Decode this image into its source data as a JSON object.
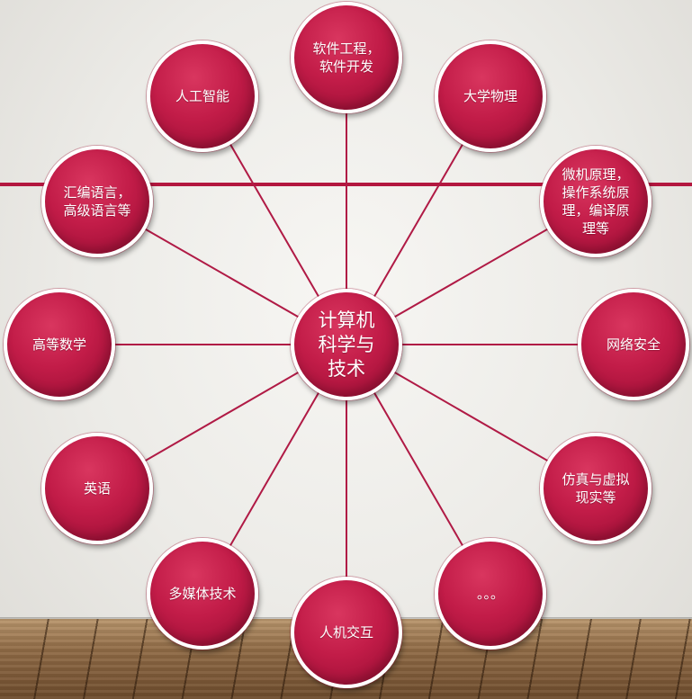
{
  "diagram": {
    "center": {
      "id": "center",
      "label": "计算机\n科学与\n技术"
    },
    "nodes": [
      {
        "id": "software-engineering",
        "label": "软件工程，\n软件开发"
      },
      {
        "id": "college-physics",
        "label": "大学物理"
      },
      {
        "id": "microcomputer-os-compiler",
        "label": "微机原理，\n操作系统原\n理，编译原\n理等"
      },
      {
        "id": "network-security",
        "label": "网络安全"
      },
      {
        "id": "simulation-vr",
        "label": "仿真与虚拟\n现实等"
      },
      {
        "id": "ellipsis",
        "label": "。。。"
      },
      {
        "id": "hci",
        "label": "人机交互"
      },
      {
        "id": "multimedia",
        "label": "多媒体技术"
      },
      {
        "id": "english",
        "label": "英语"
      },
      {
        "id": "advanced-math",
        "label": "高等数学"
      },
      {
        "id": "programming-languages",
        "label": "汇编语言，\n高级语言等"
      },
      {
        "id": "ai",
        "label": "人工智能"
      }
    ]
  },
  "colors": {
    "node_fill": "#c21c48",
    "connector": "#b01a45",
    "banner_line": "#b3173f"
  }
}
